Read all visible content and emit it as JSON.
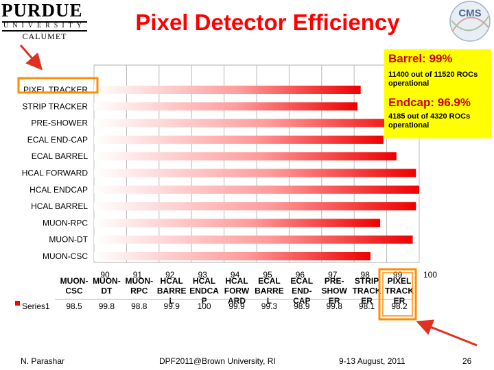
{
  "title": "Pixel Detector Efficiency",
  "logos": {
    "purdue_line1": "PURDUE",
    "purdue_line2": "UNIVERSITY",
    "purdue_line3": "CALUMET",
    "cms": "CMS"
  },
  "callout": {
    "barrel_title": "Barrel: 99%",
    "barrel_text": "11400 out of 11520 ROCs operational",
    "endcap_title": "Endcap: 96.9%",
    "endcap_text": "4185 out of 4320 ROCs operational"
  },
  "colors": {
    "accent": "#ff0000",
    "callout_bg": "#ffff00",
    "highlight": "#ff8c00",
    "arrow": "#e03020"
  },
  "chart_data": {
    "type": "bar",
    "orientation": "horizontal",
    "categories": [
      "PIXEL TRACKER",
      "STRIP TRACKER",
      "PRE-SHOWER",
      "ECAL END-CAP",
      "ECAL BARREL",
      "HCAL FORWARD",
      "HCAL ENDCAP",
      "HCAL BARREL",
      "MUON-RPC",
      "MUON-DT",
      "MUON-CSC"
    ],
    "series": [
      {
        "name": "Series1",
        "values": [
          98.2,
          98.1,
          99.8,
          98.9,
          99.3,
          99.9,
          100,
          99.9,
          98.8,
          99.8,
          98.5
        ]
      }
    ],
    "xlim": [
      90,
      100
    ],
    "xticks": [
      90,
      91,
      92,
      93,
      94,
      95,
      96,
      97,
      98,
      99,
      100
    ],
    "grid": true,
    "data_table": {
      "header_labels": [
        "MUON-CSC",
        "MUON-DT",
        "MUON-RPC",
        "HCAL BARREL",
        "HCAL ENDCAP",
        "HCAL FORWARD",
        "ECAL BARREL",
        "ECAL END-CAP",
        "PRE-SHOWER",
        "STRIP TRACKER",
        "PIXEL TRACKER"
      ],
      "header_lines": [
        [
          "MUON-",
          "CSC"
        ],
        [
          "MUON-",
          "DT"
        ],
        [
          "MUON-",
          "RPC"
        ],
        [
          "HCAL",
          "BARRE",
          "L"
        ],
        [
          "HCAL",
          "ENDCA",
          "P"
        ],
        [
          "HCAL",
          "FORW",
          "ARD"
        ],
        [
          "ECAL",
          "BARRE",
          "L"
        ],
        [
          "ECAL",
          "END-",
          "CAP"
        ],
        [
          "PRE-",
          "SHOW",
          "ER"
        ],
        [
          "STRIP",
          "TRACK",
          "ER"
        ],
        [
          "PIXEL",
          "TRACK",
          "ER"
        ]
      ],
      "row_label": "Series1",
      "values": [
        "98.5",
        "99.8",
        "98.8",
        "99.9",
        "100",
        "99.9",
        "99.3",
        "98.9",
        "99.8",
        "98.1",
        "98.2"
      ]
    }
  },
  "footer": {
    "author": "N. Parashar",
    "venue": "DPF2011@Brown University, RI",
    "date": "9-13 August, 2011",
    "page": "26"
  }
}
